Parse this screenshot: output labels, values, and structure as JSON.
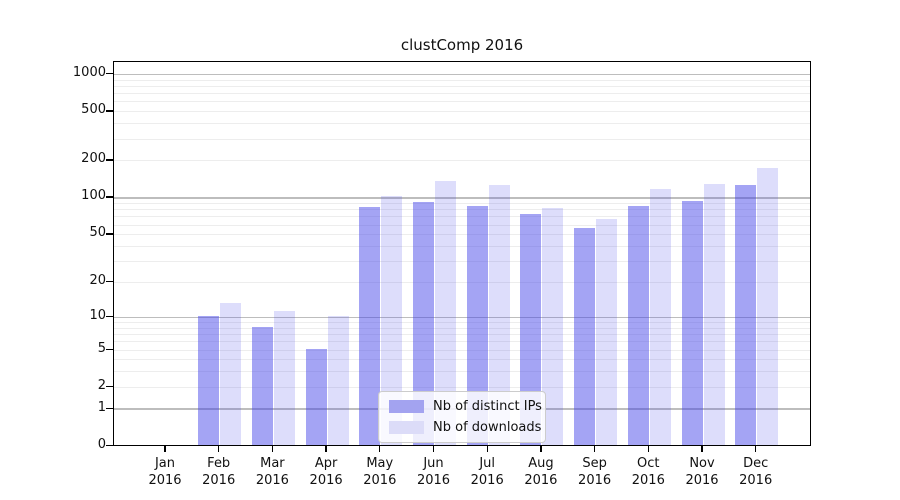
{
  "chart_data": {
    "type": "bar",
    "title": "clustComp 2016",
    "x_categories": [
      "Jan",
      "Feb",
      "Mar",
      "Apr",
      "May",
      "Jun",
      "Jul",
      "Aug",
      "Sep",
      "Oct",
      "Nov",
      "Dec"
    ],
    "x_year_label": "2016",
    "series": [
      {
        "name": "Nb of distinct IPs",
        "color": "#a3a3f0",
        "color_rgba": "rgba(64,64,232,0.48)",
        "values": [
          0,
          10,
          8,
          5,
          82,
          91,
          84,
          72,
          55,
          84,
          92,
          124
        ]
      },
      {
        "name": "Nb of downloads",
        "color": "#dcdcf8",
        "color_rgba": "rgba(64,64,232,0.18)",
        "values": [
          0,
          13,
          11,
          10,
          100,
          133,
          125,
          81,
          66,
          115,
          126,
          170
        ]
      }
    ],
    "y_axis": {
      "scale": "log1p",
      "tick_values": [
        0,
        1,
        2,
        5,
        10,
        20,
        50,
        100,
        200,
        500,
        1000
      ],
      "range": [
        0,
        1250
      ],
      "grid": true
    },
    "legend": {
      "location": "lower center"
    },
    "style": {
      "major_grid_color": "#bdbdbd",
      "minor_grid_color": "#ededed",
      "spine_color": "#000000",
      "background": "#ffffff",
      "text_color": "#111111"
    }
  }
}
